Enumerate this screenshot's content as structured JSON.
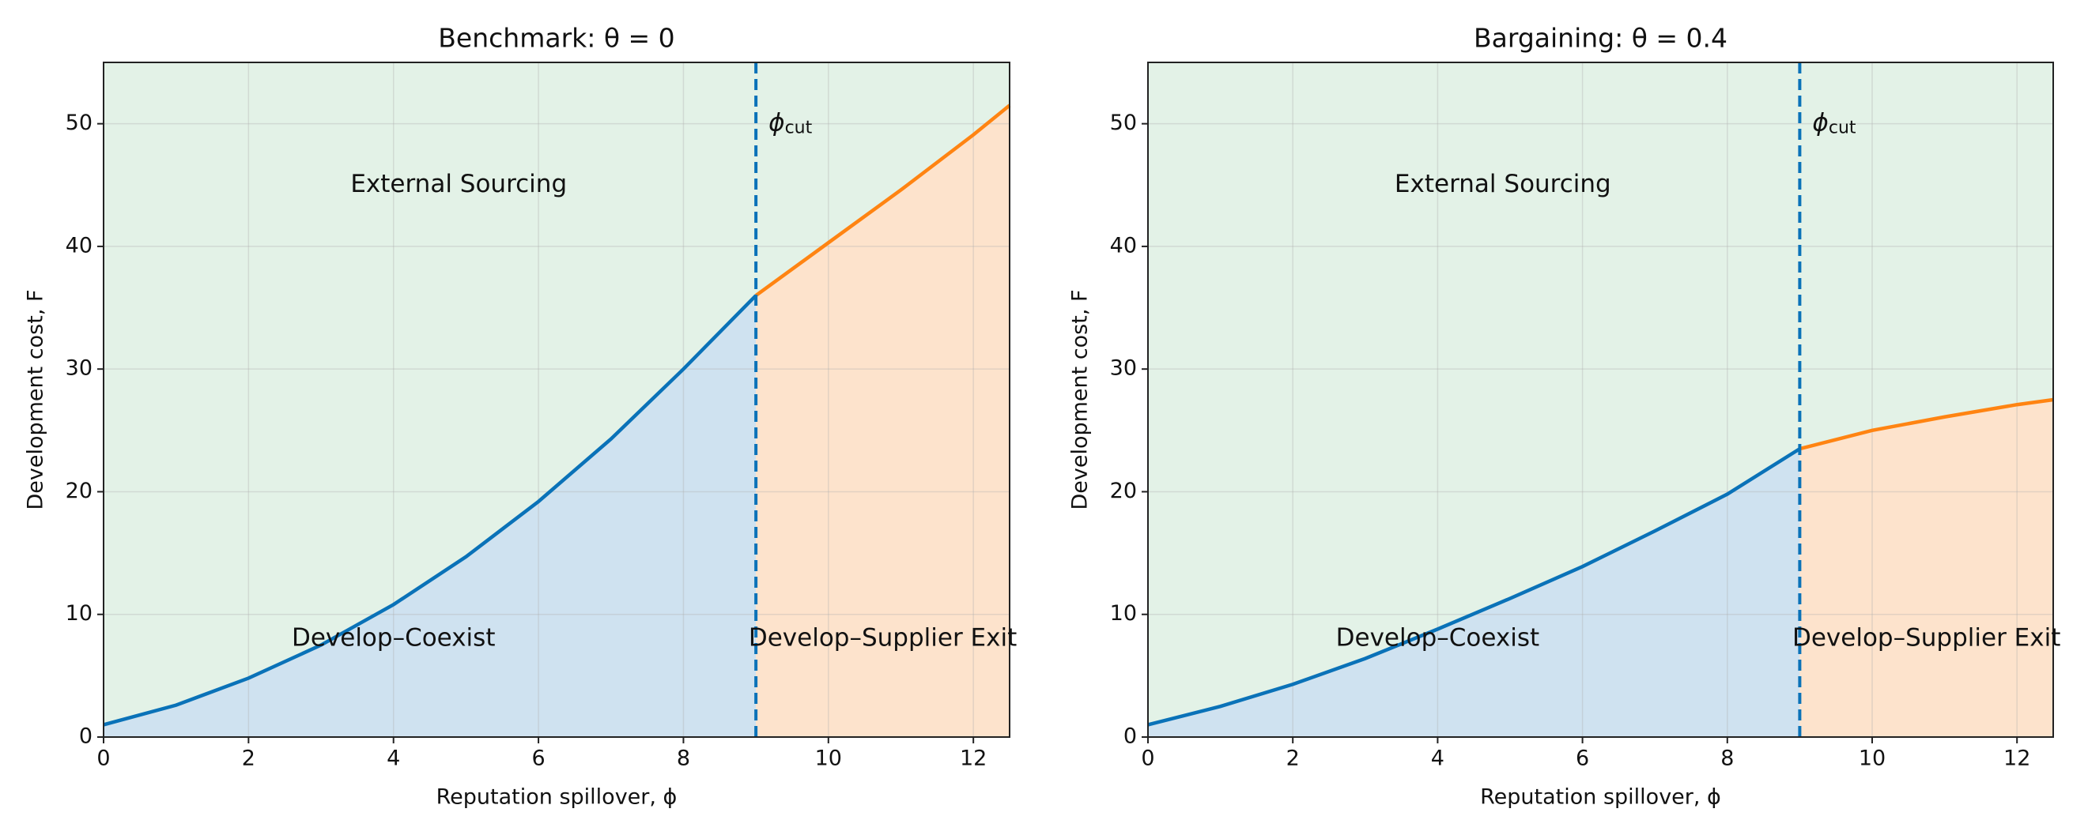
{
  "chart_data": [
    {
      "type": "line",
      "title": "Benchmark: θ = 0",
      "x_label": "Reputation spillover, ϕ",
      "y_label": "Development cost, F",
      "xlim": [
        0,
        12.5
      ],
      "ylim": [
        0,
        55
      ],
      "xticks": [
        0,
        2,
        4,
        6,
        8,
        10,
        12
      ],
      "yticks": [
        0,
        10,
        20,
        30,
        40,
        50
      ],
      "grid": true,
      "background_region": {
        "label": "External Sourcing",
        "color": "#e3f2e7"
      },
      "series": [
        {
          "color": "#0a72b8",
          "area_label": "Develop–Coexist",
          "area_color": "#cfe2f0",
          "x": [
            0,
            1,
            2,
            3,
            4,
            5,
            6,
            7,
            8,
            9
          ],
          "values": [
            1,
            2.6,
            4.8,
            7.5,
            10.8,
            14.7,
            19.2,
            24.3,
            30,
            36
          ]
        },
        {
          "color": "#ff8412",
          "area_label": "Develop–Supplier Exit",
          "area_color": "#fde3cc",
          "x": [
            9,
            10,
            11,
            12,
            12.5
          ],
          "values": [
            36,
            40.3,
            44.6,
            49.1,
            51.5
          ]
        }
      ],
      "cutoff": {
        "x": 9,
        "label": "ϕ",
        "label_sub": "cut",
        "color": "#0a72b8"
      }
    },
    {
      "type": "line",
      "title": "Bargaining: θ = 0.4",
      "x_label": "Reputation spillover, ϕ",
      "y_label": "Development cost, F",
      "xlim": [
        0,
        12.5
      ],
      "ylim": [
        0,
        55
      ],
      "xticks": [
        0,
        2,
        4,
        6,
        8,
        10,
        12
      ],
      "yticks": [
        0,
        10,
        20,
        30,
        40,
        50
      ],
      "grid": true,
      "background_region": {
        "label": "External Sourcing",
        "color": "#e3f2e7"
      },
      "series": [
        {
          "color": "#0a72b8",
          "area_label": "Develop–Coexist",
          "area_color": "#cfe2f0",
          "x": [
            0,
            1,
            2,
            3,
            4,
            5,
            6,
            7,
            8,
            9
          ],
          "values": [
            1,
            2.5,
            4.3,
            6.4,
            8.8,
            11.3,
            13.9,
            16.8,
            19.8,
            23.5
          ]
        },
        {
          "color": "#ff8412",
          "area_label": "Develop–Supplier Exit",
          "area_color": "#fde3cc",
          "x": [
            9,
            10,
            11,
            12,
            12.5
          ],
          "values": [
            23.5,
            25,
            26.1,
            27.1,
            27.5
          ]
        }
      ],
      "cutoff": {
        "x": 9,
        "label": "ϕ",
        "label_sub": "cut",
        "color": "#0a72b8"
      }
    }
  ]
}
